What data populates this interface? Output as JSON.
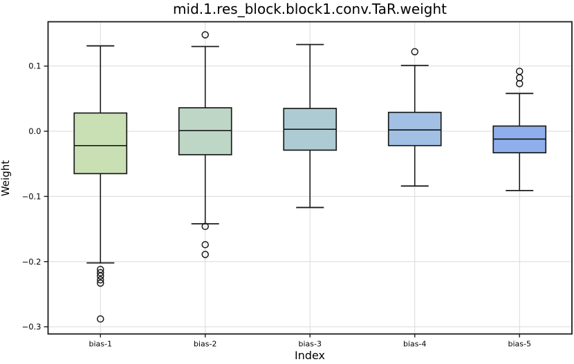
{
  "title": "mid.1.res_block.block1.conv.TaR.weight",
  "chart_data": {
    "type": "boxplot",
    "title": "mid.1.res_block.block1.conv.TaR.weight",
    "xlabel": "Index",
    "ylabel": "Weight",
    "categories": [
      "bias-1",
      "bias-2",
      "bias-3",
      "bias-4",
      "bias-5"
    ],
    "y_ticks": [
      0.1,
      0.0,
      -0.1,
      -0.2,
      -0.3
    ],
    "ylim": [
      -0.311,
      0.168
    ],
    "grid": true,
    "legend": "none",
    "axis_color": "#1a1a1a",
    "grid_color": "#d9d9d9",
    "boxes": [
      {
        "label": "bias-1",
        "whislo": -0.202,
        "q1": -0.065,
        "med": -0.022,
        "q3": 0.028,
        "whishi": 0.131,
        "fliers": [
          -0.212,
          -0.217,
          -0.222,
          -0.228,
          -0.233,
          -0.288
        ],
        "color": "#c9e0b5"
      },
      {
        "label": "bias-2",
        "whislo": -0.142,
        "q1": -0.036,
        "med": 0.001,
        "q3": 0.036,
        "whishi": 0.13,
        "fliers": [
          0.148,
          -0.146,
          -0.174,
          -0.189
        ],
        "color": "#bed6c5"
      },
      {
        "label": "bias-3",
        "whislo": -0.117,
        "q1": -0.029,
        "med": 0.003,
        "q3": 0.035,
        "whishi": 0.133,
        "fliers": [],
        "color": "#adcbd3"
      },
      {
        "label": "bias-4",
        "whislo": -0.084,
        "q1": -0.022,
        "med": 0.002,
        "q3": 0.029,
        "whishi": 0.101,
        "fliers": [
          0.122
        ],
        "color": "#a2c0e4"
      },
      {
        "label": "bias-5",
        "whislo": -0.091,
        "q1": -0.033,
        "med": -0.012,
        "q3": 0.008,
        "whishi": 0.058,
        "fliers": [
          0.092,
          0.082,
          0.073
        ],
        "color": "#8fafec"
      }
    ]
  }
}
